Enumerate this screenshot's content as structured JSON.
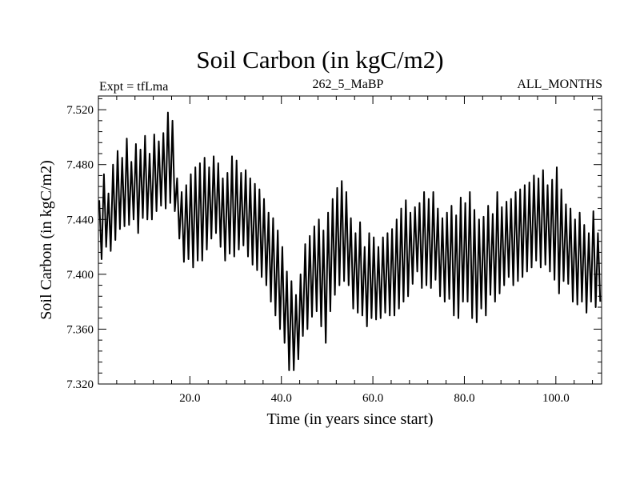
{
  "chart_data": {
    "type": "line",
    "title": "Soil Carbon (in kgC/m2)",
    "subtitle_left": "Expt = tfLma",
    "subtitle_center": "262_5_MaBP",
    "subtitle_right": "ALL_MONTHS",
    "xlabel": "Time (in years since start)",
    "ylabel": "Soil Carbon (in kgC/m2)",
    "xlim": [
      0,
      110
    ],
    "ylim": [
      7.32,
      7.53
    ],
    "x_ticks": [
      20,
      40,
      60,
      80,
      100
    ],
    "x_tick_labels": [
      "20.0",
      "40.0",
      "60.0",
      "80.0",
      "100.0"
    ],
    "y_ticks": [
      7.32,
      7.36,
      7.4,
      7.44,
      7.48,
      7.52
    ],
    "y_tick_labels": [
      "7.320",
      "7.360",
      "7.400",
      "7.440",
      "7.480",
      "7.520"
    ],
    "series": [
      {
        "name": "Soil Carbon",
        "sampling": "monthly",
        "annual_peaks": {
          "x": [
            0.2,
            1.2,
            2.2,
            3.2,
            4.2,
            5.2,
            6.2,
            7.2,
            8.2,
            9.2,
            10.2,
            11.2,
            12.2,
            13.2,
            14.2,
            15.2,
            16.2,
            17.2,
            18.2,
            19.2,
            20.2,
            21.2,
            22.2,
            23.2,
            24.2,
            25.2,
            26.2,
            27.2,
            28.2,
            29.2,
            30.2,
            31.2,
            32.2,
            33.2,
            34.2,
            35.2,
            36.2,
            37.2,
            38.2,
            39.2,
            40.2,
            41.2,
            42.2,
            43.2,
            44.2,
            45.2,
            46.2,
            47.2,
            48.2,
            49.2,
            50.2,
            51.2,
            52.2,
            53.2,
            54.2,
            55.2,
            56.2,
            57.2,
            58.2,
            59.2,
            60.2,
            61.2,
            62.2,
            63.2,
            64.2,
            65.2,
            66.2,
            67.2,
            68.2,
            69.2,
            70.2,
            71.2,
            72.2,
            73.2,
            74.2,
            75.2,
            76.2,
            77.2,
            78.2,
            79.2,
            80.2,
            81.2,
            82.2,
            83.2,
            84.2,
            85.2,
            86.2,
            87.2,
            88.2,
            89.2,
            90.2,
            91.2,
            92.2,
            93.2,
            94.2,
            95.2,
            96.2,
            97.2,
            98.2,
            99.2,
            100.2,
            101.2,
            102.2,
            103.2,
            104.2,
            105.2,
            106.2,
            107.2,
            108.2,
            109.2
          ],
          "y": [
            7.454,
            7.473,
            7.459,
            7.48,
            7.49,
            7.485,
            7.499,
            7.482,
            7.495,
            7.491,
            7.501,
            7.488,
            7.502,
            7.497,
            7.503,
            7.518,
            7.512,
            7.47,
            7.46,
            7.465,
            7.473,
            7.478,
            7.481,
            7.485,
            7.478,
            7.486,
            7.481,
            7.47,
            7.474,
            7.486,
            7.483,
            7.474,
            7.476,
            7.47,
            7.466,
            7.462,
            7.455,
            7.445,
            7.441,
            7.432,
            7.42,
            7.402,
            7.395,
            7.385,
            7.4,
            7.422,
            7.428,
            7.435,
            7.44,
            7.432,
            7.445,
            7.455,
            7.463,
            7.468,
            7.46,
            7.441,
            7.43,
            7.438,
            7.42,
            7.43,
            7.427,
            7.42,
            7.427,
            7.43,
            7.433,
            7.44,
            7.448,
            7.454,
            7.445,
            7.449,
            7.452,
            7.46,
            7.455,
            7.46,
            7.448,
            7.441,
            7.445,
            7.45,
            7.443,
            7.456,
            7.452,
            7.46,
            7.447,
            7.44,
            7.442,
            7.45,
            7.444,
            7.46,
            7.449,
            7.453,
            7.455,
            7.46,
            7.462,
            7.465,
            7.467,
            7.472,
            7.47,
            7.476,
            7.465,
            7.469,
            7.478,
            7.462,
            7.451,
            7.448,
            7.44,
            7.445,
            7.436,
            7.43,
            7.446,
            7.43
          ]
        },
        "annual_troughs": {
          "x": [
            0.7,
            1.7,
            2.7,
            3.7,
            4.7,
            5.7,
            6.7,
            7.7,
            8.7,
            9.7,
            10.7,
            11.7,
            12.7,
            13.7,
            14.7,
            15.7,
            16.7,
            17.7,
            18.7,
            19.7,
            20.7,
            21.7,
            22.7,
            23.7,
            24.7,
            25.7,
            26.7,
            27.7,
            28.7,
            29.7,
            30.7,
            31.7,
            32.7,
            33.7,
            34.7,
            35.7,
            36.7,
            37.7,
            38.7,
            39.7,
            40.7,
            41.7,
            42.7,
            43.7,
            44.7,
            45.7,
            46.7,
            47.7,
            48.7,
            49.7,
            50.7,
            51.7,
            52.7,
            53.7,
            54.7,
            55.7,
            56.7,
            57.7,
            58.7,
            59.7,
            60.7,
            61.7,
            62.7,
            63.7,
            64.7,
            65.7,
            66.7,
            67.7,
            68.7,
            69.7,
            70.7,
            71.7,
            72.7,
            73.7,
            74.7,
            75.7,
            76.7,
            77.7,
            78.7,
            79.7,
            80.7,
            81.7,
            82.7,
            83.7,
            84.7,
            85.7,
            86.7,
            87.7,
            88.7,
            89.7,
            90.7,
            91.7,
            92.7,
            93.7,
            94.7,
            95.7,
            96.7,
            97.7,
            98.7,
            99.7,
            100.7,
            101.7,
            102.7,
            103.7,
            104.7,
            105.7,
            106.7,
            107.7,
            108.7,
            109.7
          ],
          "y": [
            7.411,
            7.42,
            7.417,
            7.425,
            7.433,
            7.435,
            7.436,
            7.44,
            7.43,
            7.441,
            7.44,
            7.44,
            7.446,
            7.45,
            7.448,
            7.452,
            7.446,
            7.426,
            7.409,
            7.411,
            7.405,
            7.41,
            7.41,
            7.418,
            7.426,
            7.43,
            7.42,
            7.41,
            7.415,
            7.413,
            7.418,
            7.421,
            7.413,
            7.407,
            7.403,
            7.398,
            7.392,
            7.38,
            7.37,
            7.36,
            7.35,
            7.33,
            7.33,
            7.338,
            7.355,
            7.36,
            7.369,
            7.373,
            7.362,
            7.35,
            7.373,
            7.385,
            7.392,
            7.395,
            7.392,
            7.375,
            7.372,
            7.37,
            7.362,
            7.368,
            7.367,
            7.368,
            7.372,
            7.37,
            7.37,
            7.375,
            7.38,
            7.384,
            7.393,
            7.402,
            7.39,
            7.392,
            7.39,
            7.396,
            7.384,
            7.38,
            7.382,
            7.37,
            7.368,
            7.38,
            7.38,
            7.368,
            7.365,
            7.375,
            7.37,
            7.385,
            7.38,
            7.386,
            7.392,
            7.398,
            7.392,
            7.395,
            7.398,
            7.402,
            7.405,
            7.41,
            7.405,
            7.407,
            7.402,
            7.396,
            7.386,
            7.395,
            7.393,
            7.38,
            7.378,
            7.38,
            7.372,
            7.38,
            7.376,
            7.38
          ]
        }
      }
    ]
  }
}
